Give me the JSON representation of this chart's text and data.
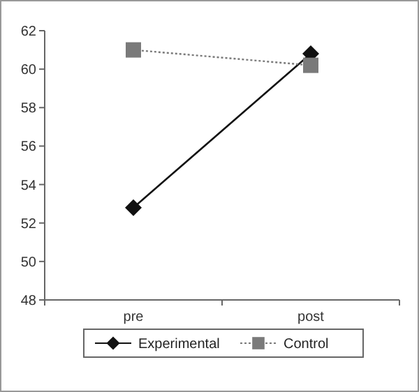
{
  "chart_data": {
    "type": "line",
    "categories": [
      "pre",
      "post"
    ],
    "ylim": [
      48,
      62
    ],
    "yticks": [
      48,
      50,
      52,
      54,
      56,
      58,
      60,
      62
    ],
    "grid": false,
    "legend": "bottom",
    "series": [
      {
        "name": "Experimental",
        "color": "#111111",
        "values": [
          52.8,
          60.8
        ],
        "marker": "diamond",
        "line_style": "solid"
      },
      {
        "name": "Control",
        "color": "#7a7a7a",
        "values": [
          61.0,
          60.2
        ],
        "marker": "square",
        "line_style": "dotted"
      }
    ]
  }
}
